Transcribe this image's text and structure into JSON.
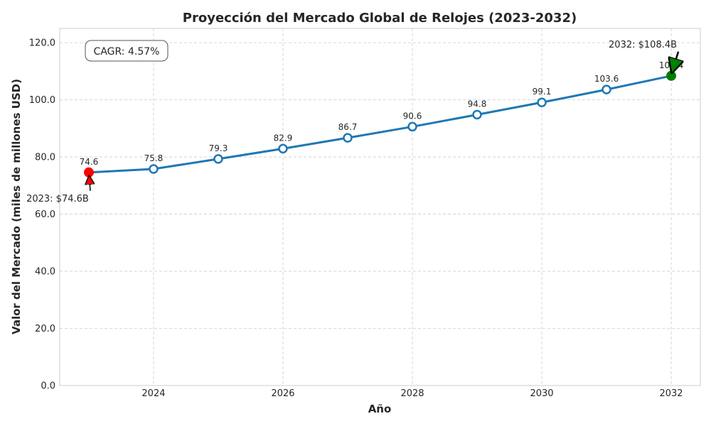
{
  "chart_data": {
    "type": "line",
    "title": "Proyección del Mercado Global de Relojes (2023-2032)",
    "xlabel": "Año",
    "ylabel": "Valor del Mercado (miles de millones USD)",
    "x": [
      2023,
      2024,
      2025,
      2026,
      2027,
      2028,
      2029,
      2030,
      2031,
      2032
    ],
    "series": [
      {
        "values": [
          74.6,
          75.8,
          79.3,
          82.9,
          86.7,
          90.6,
          94.8,
          99.1,
          103.6,
          108.4
        ],
        "data_labels": [
          "74.6",
          "75.8",
          "79.3",
          "82.9",
          "86.7",
          "90.6",
          "94.8",
          "99.1",
          "103.6",
          "108.4"
        ],
        "color": "#1f77b4"
      }
    ],
    "xlim": [
      2022.55,
      2032.45
    ],
    "ylim": [
      0,
      125
    ],
    "xticks": [
      2024,
      2026,
      2028,
      2030,
      2032
    ],
    "xtick_labels": [
      "2024",
      "2026",
      "2028",
      "2030",
      "2032"
    ],
    "yticks": [
      0,
      20,
      40,
      60,
      80,
      100,
      120
    ],
    "ytick_labels": [
      "0.0",
      "20.0",
      "40.0",
      "60.0",
      "80.0",
      "100.0",
      "120.0"
    ],
    "grid": true,
    "highlights": {
      "start": {
        "x": 2023,
        "y": 74.6,
        "color": "#ff0000"
      },
      "end": {
        "x": 2032,
        "y": 108.4,
        "color": "#008000"
      }
    },
    "annotations": [
      {
        "text": "2023: $74.6B",
        "x": 2023,
        "y": 74.6,
        "arrow_color": "#ff0000"
      },
      {
        "text": "2032: $108.4B",
        "x": 2032,
        "y": 108.4,
        "arrow_color": "#008000"
      }
    ],
    "cagr_text": "CAGR: 4.57%"
  }
}
